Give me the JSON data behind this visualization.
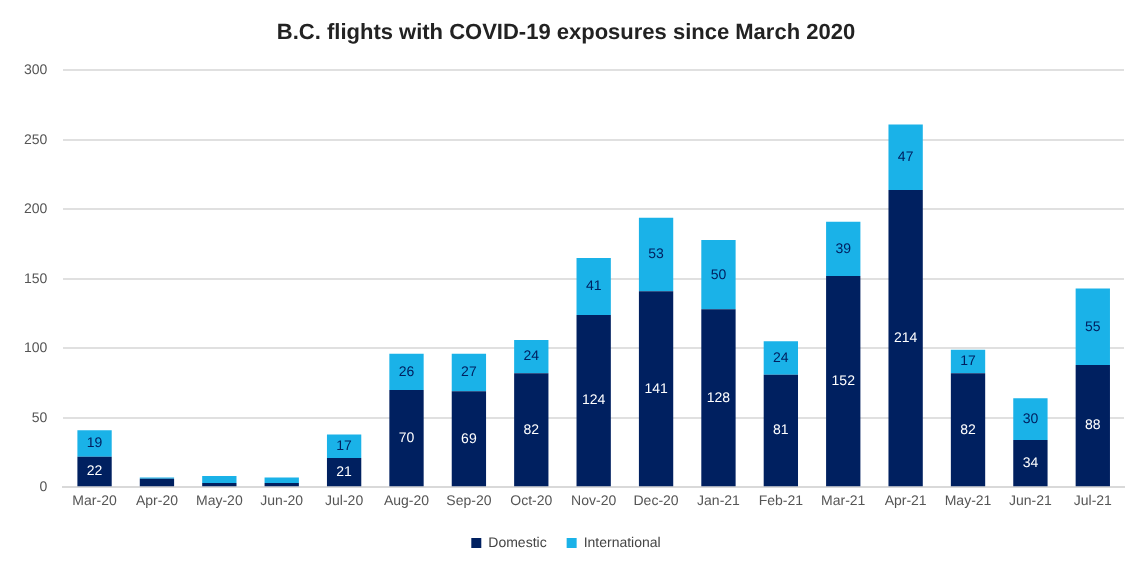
{
  "chart_data": {
    "type": "bar",
    "title": "B.C. flights with COVID-19 exposures since March 2020",
    "stacked": true,
    "categories": [
      "Mar-20",
      "Apr-20",
      "May-20",
      "Jun-20",
      "Jul-20",
      "Aug-20",
      "Sep-20",
      "Oct-20",
      "Nov-20",
      "Dec-20",
      "Jan-21",
      "Feb-21",
      "Mar-21",
      "Apr-21",
      "May-21",
      "Jun-21",
      "Jul-21"
    ],
    "series": [
      {
        "name": "Domestic",
        "color": "#002060",
        "values": [
          22,
          6,
          3,
          3,
          21,
          70,
          69,
          82,
          124,
          141,
          128,
          81,
          152,
          214,
          82,
          34,
          88
        ],
        "value_labels": [
          "22",
          null,
          null,
          null,
          "21",
          "70",
          "69",
          "82",
          "124",
          "141",
          "128",
          "81",
          "152",
          "214",
          "82",
          "34",
          "88"
        ]
      },
      {
        "name": "International",
        "color": "#1ab2e8",
        "values": [
          19,
          1,
          5,
          4,
          17,
          26,
          27,
          24,
          41,
          53,
          50,
          24,
          39,
          47,
          17,
          30,
          55
        ],
        "value_labels": [
          "19",
          null,
          null,
          null,
          "17",
          "26",
          "27",
          "24",
          "41",
          "53",
          "50",
          "24",
          "39",
          "47",
          "17",
          "30",
          "55"
        ]
      }
    ],
    "ylim": [
      0,
      300
    ],
    "yticks": [
      0,
      50,
      100,
      150,
      200,
      250,
      300
    ],
    "grid": "y",
    "legend": "bottom"
  }
}
